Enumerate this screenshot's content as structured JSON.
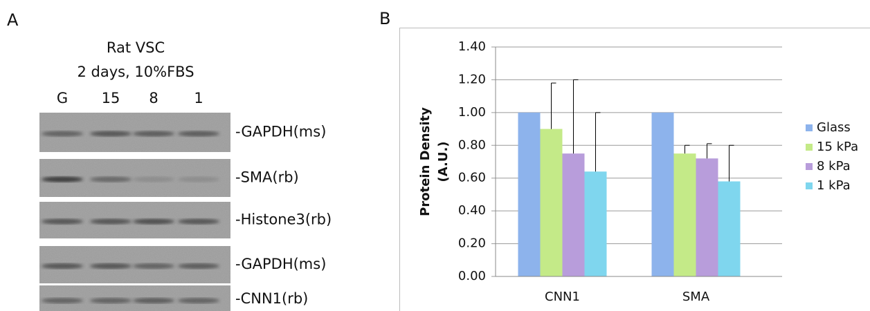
{
  "panel_labels": [
    "A",
    "B"
  ],
  "panel_a": {
    "title_lines": [
      "Rat VSC",
      "2 days, 10%FBS"
    ],
    "lanes": [
      "G",
      "15",
      "8",
      "1"
    ],
    "blots": [
      "-GAPDH(ms)",
      "-SMA(rb)",
      "-Histone3(rb)",
      "-GAPDH(ms)",
      "-CNN1(rb)"
    ]
  },
  "chart_data": {
    "type": "bar",
    "y_label": [
      "Protein Density",
      "(A.U.)"
    ],
    "categories": [
      "CNN1",
      "SMA"
    ],
    "series": [
      {
        "name": "Glass",
        "color": "#8db3ec",
        "values": [
          1.0,
          1.0
        ],
        "errors": [
          null,
          null
        ]
      },
      {
        "name": "15 kPa",
        "color": "#c4ea88",
        "values": [
          0.9,
          0.75
        ],
        "errors": [
          0.28,
          0.05
        ]
      },
      {
        "name": "8 kPa",
        "color": "#b89ddb",
        "values": [
          0.75,
          0.72
        ],
        "errors": [
          0.45,
          0.09
        ]
      },
      {
        "name": "1 kPa",
        "color": "#7fd6ee",
        "values": [
          0.64,
          0.58
        ],
        "errors": [
          0.36,
          0.22
        ]
      }
    ],
    "ylim": [
      0,
      1.4
    ],
    "yticks": [
      {
        "value": 0,
        "label": "0.00"
      },
      {
        "value": 0.2,
        "label": "0.20"
      },
      {
        "value": 0.4,
        "label": "0.40"
      },
      {
        "value": 0.6,
        "label": "0.60"
      },
      {
        "value": 0.8,
        "label": "0.80"
      },
      {
        "value": 1.0,
        "label": "1.00"
      },
      {
        "value": 1.2,
        "label": "1.20"
      },
      {
        "value": 1.4,
        "label": "1.40"
      }
    ],
    "grid": true,
    "legend": "right"
  }
}
